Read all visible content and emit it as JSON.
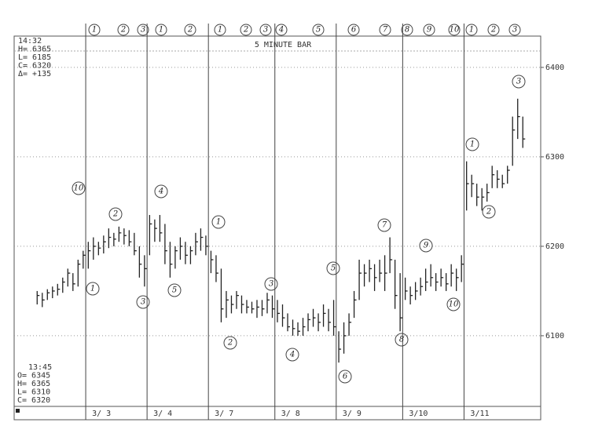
{
  "chart_data": {
    "type": "hlc",
    "header": "5 MINUTE BAR",
    "info_top": [
      "14:32",
      "H= 6365",
      "L= 6185",
      "C= 6320",
      "Δ= +135"
    ],
    "info_bottom": [
      "13:45",
      "O= 6345",
      "H= 6365",
      "L= 6310",
      "C= 6320"
    ],
    "days": [
      {
        "value": 9.5,
        "label": "3/ 3"
      },
      {
        "value": 21.5,
        "label": "3/ 4"
      },
      {
        "value": 33.5,
        "label": "3/ 7"
      },
      {
        "value": 46.5,
        "label": "3/ 8"
      },
      {
        "value": 58.5,
        "label": "3/ 9"
      },
      {
        "value": 71.5,
        "label": "3/10"
      },
      {
        "value": 83.5,
        "label": "3/11"
      }
    ],
    "xlim": [
      -4.5,
      98.5
    ],
    "ylim": [
      6021,
      6435
    ],
    "yticks": [
      6100,
      6200,
      6300,
      6400
    ],
    "grid": true,
    "color": "#222",
    "high": [
      6150,
      6148,
      6152,
      6155,
      6158,
      6165,
      6175,
      6170,
      6185,
      6195,
      6205,
      6210,
      6205,
      6212,
      6220,
      6215,
      6222,
      6220,
      6218,
      6215,
      6200,
      6190,
      6235,
      6230,
      6235,
      6225,
      6205,
      6200,
      6210,
      6205,
      6200,
      6215,
      6220,
      6212,
      6195,
      6190,
      6175,
      6150,
      6145,
      6150,
      6145,
      6140,
      6138,
      6140,
      6140,
      6148,
      6145,
      6140,
      6135,
      6125,
      6118,
      6115,
      6120,
      6125,
      6130,
      6125,
      6135,
      6130,
      6140,
      6105,
      6115,
      6125,
      6150,
      6185,
      6180,
      6185,
      6180,
      6185,
      6190,
      6210,
      6185,
      6170,
      6165,
      6155,
      6160,
      6165,
      6175,
      6180,
      6170,
      6175,
      6170,
      6180,
      6175,
      6190,
      6295,
      6280,
      6270,
      6265,
      6270,
      6290,
      6285,
      6280,
      6290,
      6345,
      6365,
      6345
    ],
    "low": [
      6135,
      6132,
      6140,
      6142,
      6145,
      6148,
      6155,
      6150,
      6155,
      6175,
      6175,
      6185,
      6190,
      6192,
      6198,
      6200,
      6205,
      6202,
      6200,
      6190,
      6165,
      6155,
      6190,
      6205,
      6205,
      6180,
      6165,
      6175,
      6185,
      6180,
      6180,
      6190,
      6195,
      6190,
      6170,
      6160,
      6115,
      6120,
      6125,
      6130,
      6125,
      6125,
      6125,
      6120,
      6122,
      6125,
      6120,
      6115,
      6110,
      6105,
      6100,
      6100,
      6100,
      6105,
      6110,
      6105,
      6110,
      6105,
      6100,
      6070,
      6080,
      6100,
      6120,
      6140,
      6155,
      6160,
      6150,
      6160,
      6150,
      6170,
      6130,
      6105,
      6140,
      6135,
      6140,
      6145,
      6150,
      6155,
      6150,
      6155,
      6150,
      6155,
      6150,
      6160,
      6240,
      6255,
      6245,
      6240,
      6250,
      6265,
      6265,
      6265,
      6270,
      6290,
      6320,
      6310
    ],
    "close": [
      6145,
      6140,
      6148,
      6150,
      6152,
      6160,
      6170,
      6158,
      6180,
      6190,
      6195,
      6200,
      6198,
      6205,
      6210,
      6208,
      6215,
      6212,
      6205,
      6195,
      6180,
      6175,
      6225,
      6220,
      6215,
      6195,
      6180,
      6195,
      6200,
      6190,
      6195,
      6205,
      6210,
      6200,
      6185,
      6170,
      6130,
      6140,
      6135,
      6145,
      6135,
      6132,
      6130,
      6132,
      6130,
      6140,
      6130,
      6125,
      6120,
      6110,
      6108,
      6105,
      6110,
      6118,
      6120,
      6115,
      6125,
      6115,
      6110,
      6085,
      6100,
      6115,
      6140,
      6170,
      6170,
      6175,
      6165,
      6170,
      6170,
      6185,
      6145,
      6120,
      6150,
      6145,
      6150,
      6155,
      6160,
      6165,
      6160,
      6165,
      6158,
      6170,
      6165,
      6180,
      6270,
      6270,
      6255,
      6255,
      6260,
      6280,
      6275,
      6270,
      6285,
      6330,
      6345,
      6320
    ],
    "top_marks": [
      "1",
      "2",
      "3",
      "1",
      "2",
      "1",
      "2",
      "3",
      "4",
      "5",
      "6",
      "7",
      "8",
      "9",
      "10",
      "1",
      "2",
      "3"
    ],
    "annotations": [
      "10",
      "1",
      "2",
      "3",
      "4",
      "5",
      "1",
      "2",
      "3",
      "4",
      "5",
      "6",
      "7",
      "8",
      "9",
      "10",
      "1",
      "2",
      "3"
    ]
  }
}
